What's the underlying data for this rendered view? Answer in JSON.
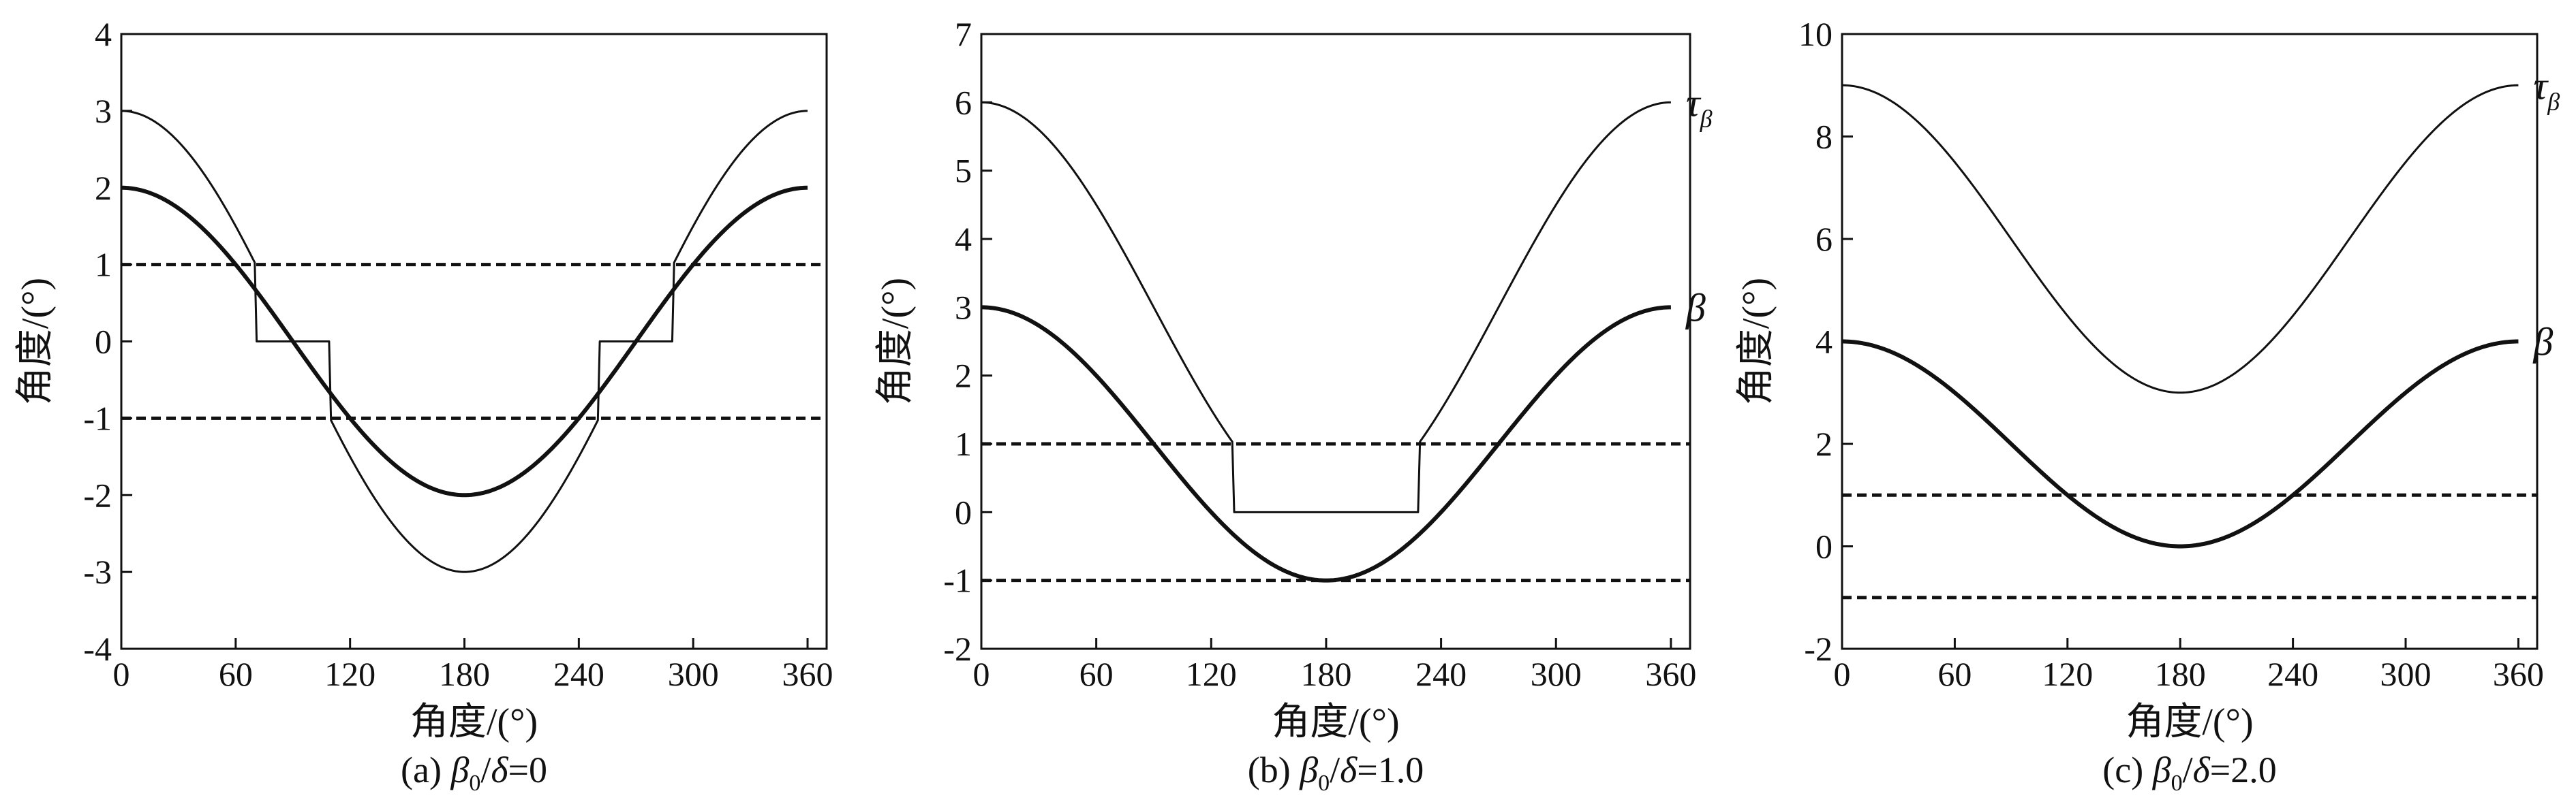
{
  "chart_data": [
    {
      "id": "a",
      "type": "line",
      "caption": {
        "prefix": "(a) ",
        "beta": "β",
        "sub": "0",
        "slash": "/",
        "delta": "δ",
        "rest": "=0"
      },
      "xlabel": "角度/(°)",
      "ylabel": "角度/(°)",
      "xlim": [
        0,
        370
      ],
      "ylim": [
        -4,
        4
      ],
      "xticks": [
        0,
        60,
        120,
        180,
        240,
        300,
        360
      ],
      "yticks": [
        -4,
        -3,
        -2,
        -1,
        0,
        1,
        2,
        3,
        4
      ],
      "series": [
        {
          "key": "tau",
          "amplitude": 3,
          "offset": 0,
          "threshold": 1
        },
        {
          "key": "beta",
          "amplitude": 2,
          "offset": 0
        }
      ],
      "hlines": [
        1,
        -1
      ],
      "curve_labels": []
    },
    {
      "id": "b",
      "type": "line",
      "caption": {
        "prefix": "(b) ",
        "beta": "β",
        "sub": "0",
        "slash": "/",
        "delta": "δ",
        "rest": "=1.0"
      },
      "xlabel": "角度/(°)",
      "ylabel": "角度/(°)",
      "xlim": [
        0,
        370
      ],
      "ylim": [
        -2,
        7
      ],
      "xticks": [
        0,
        60,
        120,
        180,
        240,
        300,
        360
      ],
      "yticks": [
        -2,
        -1,
        0,
        1,
        2,
        3,
        4,
        5,
        6,
        7
      ],
      "series": [
        {
          "key": "tau",
          "amplitude": 3,
          "offset": 3,
          "threshold": 1
        },
        {
          "key": "beta",
          "amplitude": 2,
          "offset": 1
        }
      ],
      "hlines": [
        1,
        -1
      ],
      "curve_labels": [
        {
          "target": "tau",
          "text": "τ",
          "sub": "β",
          "x": 360,
          "y": 6
        },
        {
          "target": "beta",
          "text": "β",
          "sub": "",
          "x": 360,
          "y": 3
        }
      ]
    },
    {
      "id": "c",
      "type": "line",
      "caption": {
        "prefix": "(c) ",
        "beta": "β",
        "sub": "0",
        "slash": "/",
        "delta": "δ",
        "rest": "=2.0"
      },
      "xlabel": "角度/(°)",
      "ylabel": "角度/(°)",
      "xlim": [
        0,
        370
      ],
      "ylim": [
        -2,
        10
      ],
      "xticks": [
        0,
        60,
        120,
        180,
        240,
        300,
        360
      ],
      "yticks": [
        -2,
        0,
        2,
        4,
        6,
        8,
        10
      ],
      "series": [
        {
          "key": "tau",
          "amplitude": 3,
          "offset": 6,
          "threshold": 1
        },
        {
          "key": "beta",
          "amplitude": 2,
          "offset": 2
        }
      ],
      "hlines": [
        1,
        -1
      ],
      "curve_labels": [
        {
          "target": "tau",
          "text": "τ",
          "sub": "β",
          "x": 360,
          "y": 9
        },
        {
          "target": "beta",
          "text": "β",
          "sub": "",
          "x": 360,
          "y": 4
        }
      ]
    }
  ]
}
